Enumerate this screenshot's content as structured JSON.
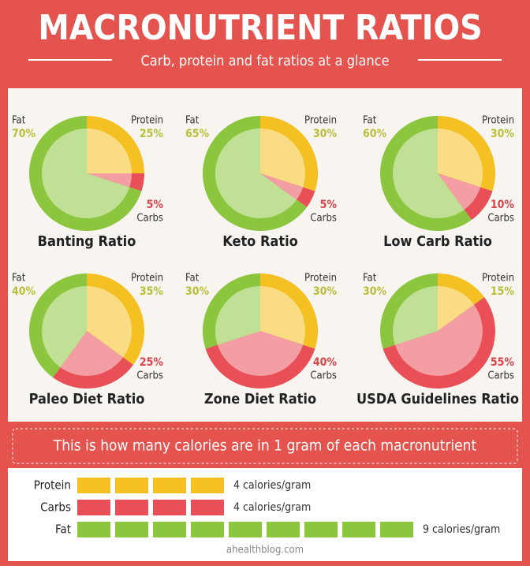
{
  "header": {
    "title": "MACRONUTRIENT RATIOS",
    "subtitle": "Carb, protein and fat ratios at a glance"
  },
  "chart_data": [
    {
      "type": "pie",
      "title": "Banting Ratio",
      "categories": [
        "Protein",
        "Carbs",
        "Fat"
      ],
      "values": [
        25,
        5,
        70
      ],
      "value_labels": [
        "25%",
        "5%",
        "70%"
      ],
      "colors": [
        "#f5c021",
        "#e84f56",
        "#8cc63f"
      ]
    },
    {
      "type": "pie",
      "title": "Keto Ratio",
      "categories": [
        "Protein",
        "Carbs",
        "Fat"
      ],
      "values": [
        30,
        5,
        65
      ],
      "value_labels": [
        "30%",
        "5%",
        "65%"
      ],
      "colors": [
        "#f5c021",
        "#e84f56",
        "#8cc63f"
      ]
    },
    {
      "type": "pie",
      "title": "Low Carb Ratio",
      "categories": [
        "Protein",
        "Carbs",
        "Fat"
      ],
      "values": [
        30,
        10,
        60
      ],
      "value_labels": [
        "30%",
        "10%",
        "60%"
      ],
      "colors": [
        "#f5c021",
        "#e84f56",
        "#8cc63f"
      ]
    },
    {
      "type": "pie",
      "title": "Paleo Diet Ratio",
      "categories": [
        "Protein",
        "Carbs",
        "Fat"
      ],
      "values": [
        35,
        25,
        40
      ],
      "value_labels": [
        "35%",
        "25%",
        "40%"
      ],
      "colors": [
        "#f5c021",
        "#e84f56",
        "#8cc63f"
      ]
    },
    {
      "type": "pie",
      "title": "Zone Diet Ratio",
      "categories": [
        "Protein",
        "Carbs",
        "Fat"
      ],
      "values": [
        30,
        40,
        30
      ],
      "value_labels": [
        "30%",
        "40%",
        "30%"
      ],
      "colors": [
        "#f5c021",
        "#e84f56",
        "#8cc63f"
      ]
    },
    {
      "type": "pie",
      "title": "USDA Guidelines Ratio",
      "categories": [
        "Protein",
        "Carbs",
        "Fat"
      ],
      "values": [
        15,
        55,
        30
      ],
      "value_labels": [
        "15%",
        "55%",
        "30%"
      ],
      "colors": [
        "#f5c021",
        "#e84f56",
        "#8cc63f"
      ]
    },
    {
      "type": "units",
      "title": "This is how many calories are in 1 gram of each macronutrient",
      "categories": [
        "Protein",
        "Carbs",
        "Fat"
      ],
      "values": [
        4,
        4,
        9
      ],
      "value_labels": [
        "4 calories/gram",
        "4 calories/gram",
        "9 calories/gram"
      ],
      "colors": [
        "#f5c021",
        "#e84f56",
        "#8cc63f"
      ]
    }
  ],
  "footer": "ahealthblog.com"
}
